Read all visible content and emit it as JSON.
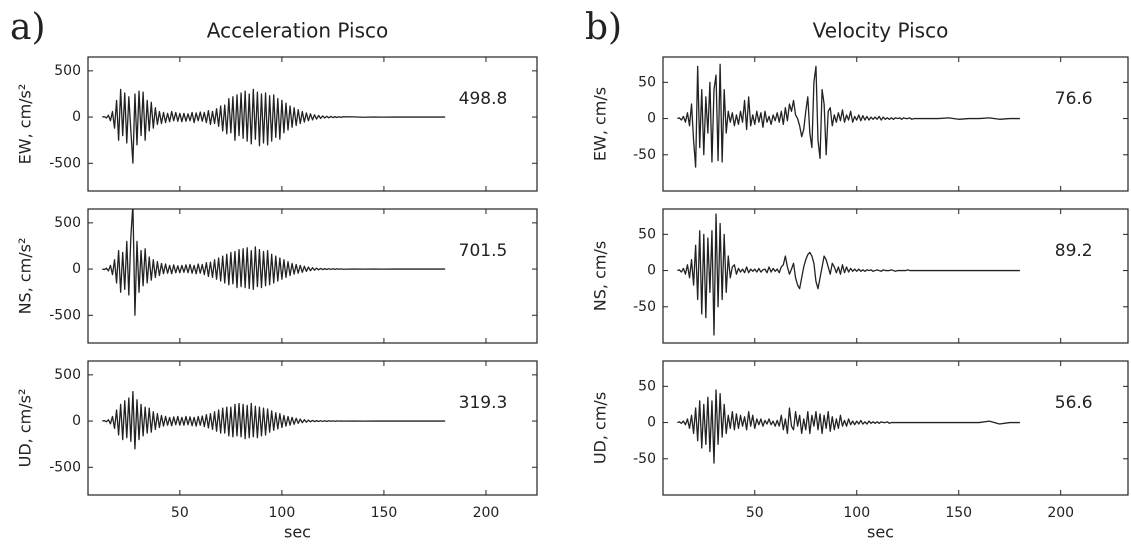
{
  "chart_data": [
    {
      "type": "line",
      "panel_label": "a)",
      "title": "Acceleration Pisco",
      "xlabel": "sec",
      "xlim": [
        5,
        225
      ],
      "xticks": [
        50,
        100,
        150,
        200
      ],
      "ylim": [
        -800,
        650
      ],
      "yticks": [
        -500,
        0,
        500
      ],
      "x": [
        12,
        13,
        14,
        15,
        16,
        17,
        18,
        19,
        20,
        21,
        22,
        23,
        24,
        25,
        26,
        27,
        28,
        29,
        30,
        31,
        32,
        33,
        34,
        35,
        36,
        37,
        38,
        39,
        40,
        41,
        42,
        43,
        44,
        45,
        46,
        47,
        48,
        49,
        50,
        51,
        52,
        53,
        54,
        55,
        56,
        57,
        58,
        59,
        60,
        61,
        62,
        63,
        64,
        65,
        66,
        67,
        68,
        69,
        70,
        71,
        72,
        73,
        74,
        75,
        76,
        77,
        78,
        79,
        80,
        81,
        82,
        83,
        84,
        85,
        86,
        87,
        88,
        89,
        90,
        91,
        92,
        93,
        94,
        95,
        96,
        97,
        98,
        99,
        100,
        101,
        102,
        103,
        104,
        105,
        106,
        107,
        108,
        109,
        110,
        111,
        112,
        113,
        114,
        115,
        116,
        117,
        118,
        119,
        120,
        121,
        122,
        123,
        124,
        125,
        126,
        127,
        128,
        129,
        130,
        135,
        140,
        145,
        150,
        155,
        160,
        165,
        170,
        175,
        180
      ],
      "series": [
        {
          "name": "EW, cm/s²",
          "color": "#222222",
          "peak": 498.8,
          "values": [
            0,
            5,
            -10,
            20,
            -40,
            60,
            -120,
            180,
            -250,
            300,
            -200,
            260,
            -280,
            220,
            -150,
            -498,
            250,
            -300,
            280,
            -200,
            270,
            -250,
            180,
            -150,
            160,
            -120,
            100,
            -80,
            60,
            -70,
            50,
            -60,
            40,
            -50,
            60,
            -40,
            50,
            -45,
            40,
            -50,
            40,
            -45,
            35,
            -40,
            50,
            -60,
            45,
            -40,
            55,
            -45,
            50,
            -60,
            70,
            -80,
            60,
            -70,
            90,
            -100,
            120,
            -150,
            130,
            -180,
            200,
            -170,
            220,
            -250,
            240,
            -200,
            260,
            -230,
            280,
            -260,
            250,
            -290,
            300,
            -240,
            270,
            -310,
            250,
            -280,
            260,
            -300,
            230,
            -260,
            240,
            -220,
            200,
            -240,
            180,
            -170,
            150,
            -140,
            120,
            -110,
            100,
            -90,
            80,
            -70,
            60,
            -55,
            45,
            -40,
            35,
            -30,
            25,
            -22,
            18,
            -15,
            12,
            -10,
            9,
            -8,
            7,
            -6,
            5,
            -5,
            4,
            -3,
            3,
            2,
            -2,
            1,
            -1,
            1,
            0,
            0,
            0,
            0,
            0
          ]
        },
        {
          "name": "NS, cm/s²",
          "color": "#222222",
          "peak": 701.5,
          "values": [
            0,
            -5,
            10,
            -20,
            40,
            -60,
            100,
            -150,
            200,
            -250,
            180,
            -220,
            300,
            -280,
            350,
            700,
            -500,
            300,
            -250,
            200,
            -180,
            220,
            -150,
            130,
            -120,
            100,
            -90,
            80,
            -70,
            60,
            -50,
            55,
            -45,
            40,
            -50,
            45,
            -40,
            35,
            -40,
            40,
            -35,
            45,
            -40,
            50,
            -45,
            40,
            -50,
            55,
            -45,
            50,
            -60,
            70,
            -80,
            75,
            -90,
            100,
            -110,
            120,
            -130,
            140,
            -150,
            160,
            -170,
            180,
            -160,
            190,
            -200,
            210,
            -190,
            220,
            -200,
            230,
            -210,
            200,
            -220,
            240,
            -190,
            210,
            -200,
            190,
            -180,
            200,
            -170,
            160,
            -150,
            140,
            -130,
            120,
            -110,
            100,
            -90,
            80,
            -70,
            60,
            -55,
            50,
            -45,
            40,
            -35,
            30,
            -25,
            22,
            -18,
            15,
            -12,
            10,
            -8,
            7,
            -6,
            5,
            -5,
            4,
            -4,
            3,
            -3,
            3,
            -2,
            2,
            -2,
            1,
            -1,
            1,
            -1,
            0,
            0,
            0,
            0,
            0,
            0
          ]
        },
        {
          "name": "UD, cm/s²",
          "color": "#222222",
          "peak": 319.3,
          "values": [
            0,
            5,
            -8,
            15,
            -30,
            50,
            -80,
            120,
            -150,
            180,
            -200,
            220,
            -180,
            250,
            -220,
            319,
            -300,
            230,
            -200,
            180,
            -160,
            150,
            -130,
            140,
            -120,
            100,
            -90,
            80,
            -70,
            60,
            -55,
            50,
            -45,
            40,
            -50,
            45,
            -40,
            50,
            -45,
            40,
            -45,
            50,
            -40,
            45,
            -50,
            40,
            -55,
            50,
            -45,
            55,
            -60,
            70,
            -75,
            80,
            -90,
            100,
            -110,
            120,
            -130,
            140,
            -130,
            150,
            -160,
            150,
            -170,
            180,
            -160,
            190,
            -170,
            180,
            -190,
            170,
            -180,
            190,
            -170,
            160,
            -180,
            150,
            -160,
            140,
            -150,
            130,
            -120,
            110,
            -100,
            90,
            -85,
            80,
            -70,
            60,
            -55,
            50,
            -45,
            40,
            -35,
            30,
            -25,
            22,
            -18,
            15,
            -12,
            10,
            -8,
            7,
            -6,
            5,
            -5,
            4,
            -4,
            3,
            -3,
            3,
            -2,
            2,
            -2,
            2,
            -1,
            1,
            -1,
            1,
            -1,
            0,
            0,
            0,
            0,
            0,
            0,
            0,
            0
          ]
        }
      ]
    },
    {
      "type": "line",
      "panel_label": "b)",
      "title": "Velocity Pisco",
      "xlabel": "sec",
      "xlim": [
        5,
        233
      ],
      "xticks": [
        50,
        100,
        150,
        200
      ],
      "ylim": [
        -100,
        85
      ],
      "yticks": [
        -50,
        0,
        50
      ],
      "x": [
        12,
        13,
        14,
        15,
        16,
        17,
        18,
        19,
        20,
        21,
        22,
        23,
        24,
        25,
        26,
        27,
        28,
        29,
        30,
        31,
        32,
        33,
        34,
        35,
        36,
        37,
        38,
        39,
        40,
        41,
        42,
        43,
        44,
        45,
        46,
        47,
        48,
        49,
        50,
        51,
        52,
        53,
        54,
        55,
        56,
        57,
        58,
        59,
        60,
        61,
        62,
        63,
        64,
        65,
        66,
        67,
        68,
        69,
        70,
        71,
        72,
        73,
        74,
        75,
        76,
        77,
        78,
        79,
        80,
        81,
        82,
        83,
        84,
        85,
        86,
        87,
        88,
        89,
        90,
        91,
        92,
        93,
        94,
        95,
        96,
        97,
        98,
        99,
        100,
        101,
        102,
        103,
        104,
        105,
        106,
        107,
        108,
        109,
        110,
        111,
        112,
        113,
        114,
        115,
        116,
        117,
        118,
        119,
        120,
        121,
        122,
        123,
        124,
        125,
        126,
        127,
        128,
        129,
        130,
        135,
        140,
        145,
        150,
        155,
        160,
        165,
        170,
        175,
        180
      ],
      "series": [
        {
          "name": "EW, cm/s",
          "color": "#222222",
          "peak": 76.6,
          "values": [
            0,
            1,
            -2,
            3,
            -5,
            8,
            -10,
            20,
            -30,
            -67,
            72,
            -40,
            40,
            -50,
            30,
            -20,
            50,
            -60,
            40,
            60,
            -58,
            75,
            -60,
            40,
            -20,
            10,
            -5,
            8,
            -10,
            5,
            -8,
            10,
            -5,
            25,
            -15,
            30,
            -10,
            5,
            -8,
            10,
            -5,
            8,
            -12,
            10,
            -5,
            3,
            -8,
            5,
            -3,
            8,
            -5,
            10,
            -8,
            15,
            -3,
            20,
            10,
            25,
            5,
            0,
            -10,
            -25,
            -15,
            10,
            30,
            -20,
            -40,
            50,
            72,
            -30,
            -55,
            40,
            20,
            -50,
            10,
            15,
            -10,
            5,
            -5,
            8,
            -3,
            12,
            -5,
            5,
            -2,
            10,
            -5,
            3,
            -2,
            5,
            -3,
            4,
            -2,
            3,
            -2,
            2,
            -1,
            2,
            -1,
            3,
            -2,
            2,
            -1,
            1,
            -1,
            1,
            -1,
            1,
            0,
            1,
            -1,
            1,
            0,
            0,
            1,
            -1,
            0,
            0,
            0,
            0,
            0,
            1,
            -1,
            0,
            0,
            1,
            -1,
            0,
            0
          ]
        },
        {
          "name": "NS, cm/s",
          "color": "#222222",
          "peak": 89.2,
          "values": [
            0,
            1,
            -2,
            3,
            -5,
            8,
            -10,
            15,
            -20,
            35,
            -40,
            55,
            -60,
            50,
            -65,
            45,
            -30,
            55,
            -89,
            78,
            -50,
            65,
            -40,
            50,
            -30,
            20,
            -10,
            5,
            8,
            -5,
            3,
            -2,
            2,
            -3,
            5,
            -3,
            2,
            -1,
            2,
            -2,
            3,
            -2,
            1,
            2,
            -3,
            5,
            -2,
            3,
            -1,
            2,
            -3,
            5,
            8,
            20,
            5,
            -5,
            2,
            10,
            -10,
            -20,
            -25,
            -10,
            5,
            15,
            22,
            25,
            20,
            10,
            -15,
            -25,
            -10,
            5,
            20,
            15,
            5,
            -5,
            10,
            5,
            -3,
            5,
            -5,
            8,
            -3,
            5,
            -2,
            3,
            -1,
            2,
            -1,
            2,
            -1,
            1,
            -1,
            1,
            0,
            1,
            -1,
            0,
            1,
            0,
            -1,
            1,
            0,
            0,
            0,
            1,
            0,
            -1,
            0,
            0,
            0,
            0,
            0,
            1,
            0,
            0,
            0,
            0,
            0,
            0,
            0,
            0,
            0,
            0,
            0,
            0,
            0,
            0,
            0
          ]
        },
        {
          "name": "UD, cm/s",
          "color": "#222222",
          "peak": 56.6,
          "values": [
            0,
            1,
            -1,
            2,
            -3,
            5,
            -8,
            10,
            -15,
            20,
            -25,
            30,
            -35,
            25,
            -30,
            35,
            -40,
            30,
            -56,
            45,
            -30,
            40,
            -20,
            25,
            -15,
            10,
            -8,
            15,
            -10,
            12,
            -8,
            10,
            -5,
            8,
            -10,
            15,
            -5,
            10,
            -8,
            5,
            -3,
            5,
            -5,
            3,
            -2,
            5,
            -3,
            2,
            -5,
            3,
            -5,
            10,
            -10,
            5,
            -15,
            20,
            -5,
            -10,
            15,
            -5,
            10,
            -15,
            5,
            -10,
            15,
            -15,
            10,
            -5,
            15,
            -10,
            12,
            -15,
            10,
            -8,
            15,
            -12,
            8,
            -10,
            5,
            -8,
            10,
            -5,
            3,
            -5,
            5,
            -3,
            2,
            -3,
            2,
            -2,
            3,
            -2,
            1,
            -2,
            2,
            -1,
            1,
            -1,
            1,
            -1,
            1,
            0,
            0,
            1,
            -1,
            0,
            0,
            0,
            0,
            0,
            0,
            0,
            0,
            0,
            0,
            0,
            0,
            0,
            0,
            0,
            0,
            0,
            0,
            0,
            0,
            2,
            -2,
            0,
            0
          ]
        }
      ]
    }
  ]
}
